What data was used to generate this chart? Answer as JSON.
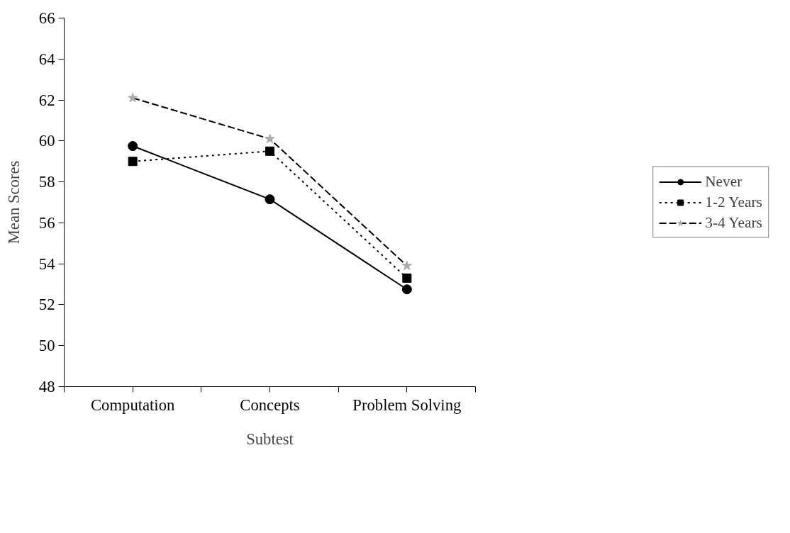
{
  "chart_data": {
    "type": "line",
    "xlabel": "Subtest",
    "ylabel": "Mean Scores",
    "categories": [
      "Computation",
      "Concepts",
      "Problem Solving"
    ],
    "series": [
      {
        "name": "Never",
        "color": "#000000",
        "values": [
          59.75,
          57.15,
          52.75
        ],
        "marker": "circle",
        "line_style": "solid"
      },
      {
        "name": "1-2 Years",
        "color": "#000000",
        "values": [
          59.0,
          59.5,
          53.3
        ],
        "marker": "square",
        "line_style": "dotted"
      },
      {
        "name": "3-4 Years",
        "color": "#000000",
        "values": [
          62.1,
          60.1,
          53.9
        ],
        "marker": "star",
        "line_style": "dashed"
      }
    ],
    "ylim": [
      48,
      66
    ],
    "yticks": [
      48,
      50,
      52,
      54,
      56,
      58,
      60,
      62,
      64,
      66
    ],
    "grid": false,
    "legend": "right"
  }
}
